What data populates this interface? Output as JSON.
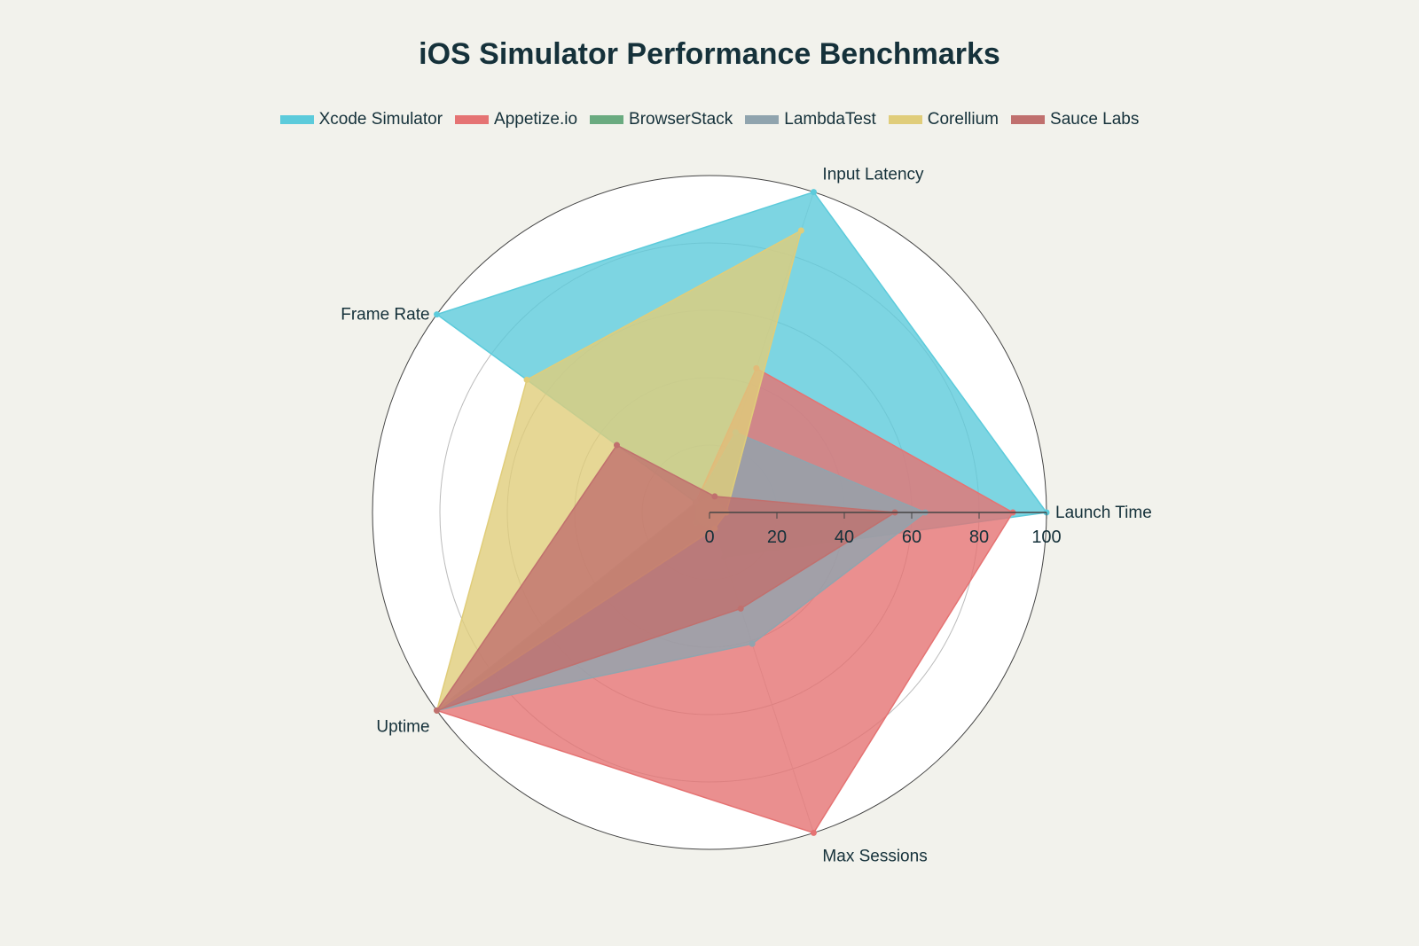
{
  "chart_data": {
    "type": "radar",
    "title": "iOS Simulator Performance Benchmarks",
    "axes": [
      "Launch Time",
      "Input Latency",
      "Frame Rate",
      "Uptime",
      "Max Sessions"
    ],
    "radial_range": [
      0,
      100
    ],
    "radial_ticks": [
      "0",
      "20",
      "40",
      "60",
      "80",
      "100"
    ],
    "legend_position": "top",
    "series": [
      {
        "name": "Xcode Simulator",
        "color": "#5ccbdb",
        "values": [
          100,
          100,
          100,
          0,
          14
        ]
      },
      {
        "name": "Appetize.io",
        "color": "#e57373",
        "values": [
          90,
          45,
          5,
          100,
          100
        ]
      },
      {
        "name": "BrowserStack",
        "color": "#6aab80",
        "values": [
          5,
          5,
          5,
          5,
          5
        ]
      },
      {
        "name": "LambdaTest",
        "color": "#90a4ae",
        "values": [
          64,
          25,
          5,
          100,
          41
        ]
      },
      {
        "name": "Corellium",
        "color": "#e0cd7a",
        "values": [
          5,
          88,
          67,
          100,
          5
        ]
      },
      {
        "name": "Sauce Labs",
        "color": "#c0706e",
        "values": [
          55,
          5,
          34,
          100,
          30
        ]
      }
    ]
  }
}
